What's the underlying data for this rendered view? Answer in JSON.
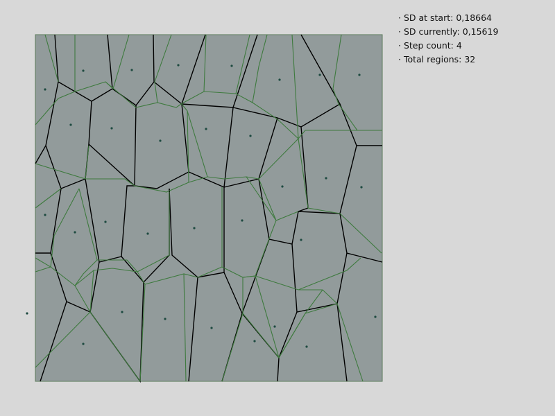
{
  "stats": {
    "sd_start": "· SD at start: 0,18664",
    "sd_current": "· SD currently: 0,15619",
    "step_count": "· Step count: 4",
    "total_regions": "· Total regions: 32"
  },
  "colors": {
    "background": "#d8d8d8",
    "region_fill": "#929b9b",
    "region_border": "#000000",
    "current_edges": "#3e7a3e",
    "sites": "#1e4a40"
  }
}
